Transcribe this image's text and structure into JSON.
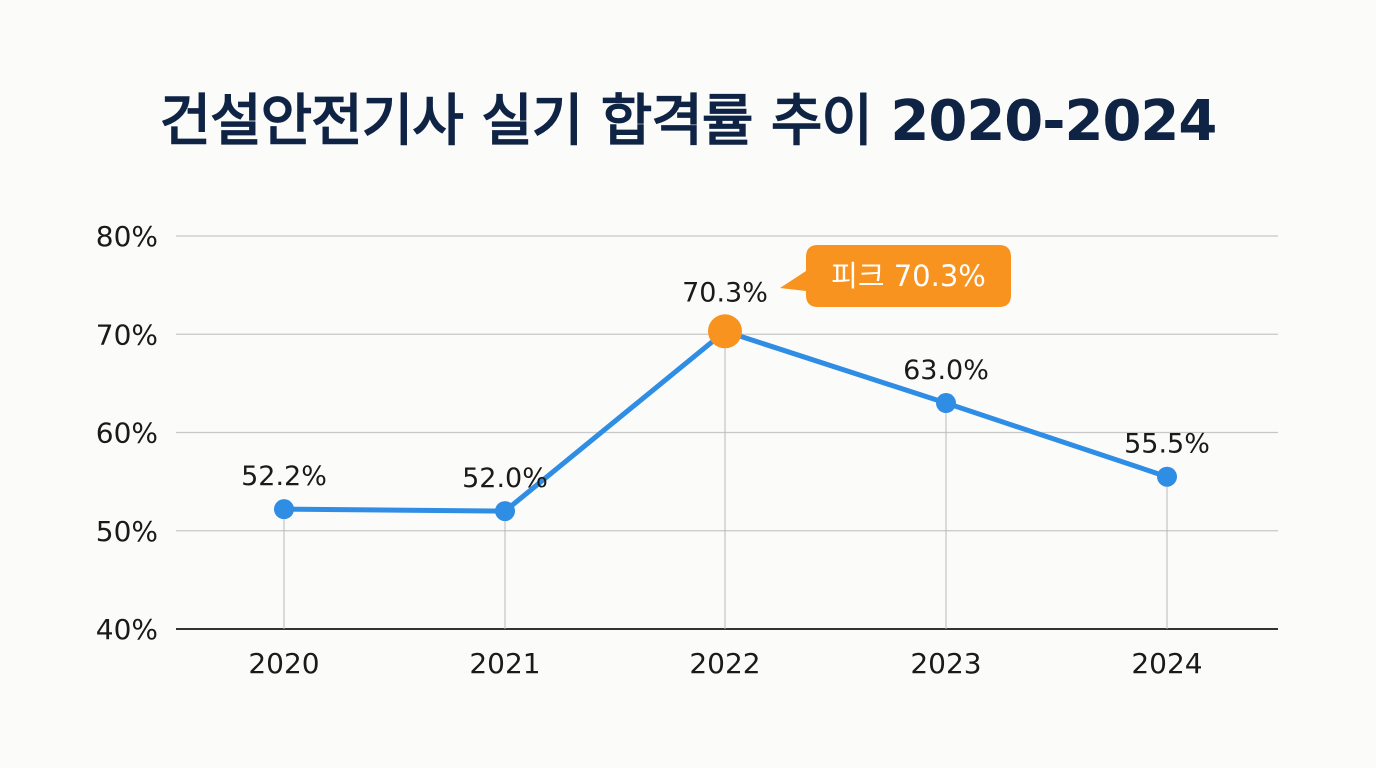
{
  "chart_data": {
    "type": "line",
    "title": "건설안전기사 실기 합격률 추이 2020-2024",
    "xlabel": "",
    "ylabel": "",
    "categories": [
      "2020",
      "2021",
      "2022",
      "2023",
      "2024"
    ],
    "series": [
      {
        "name": "합격률",
        "values": [
          52.2,
          52.0,
          70.3,
          63.0,
          55.5
        ],
        "labels": [
          "52.2%",
          "52.0%",
          "70.3%",
          "63.0%",
          "55.5%"
        ]
      }
    ],
    "ylim": [
      40,
      80
    ],
    "yticks": [
      40,
      50,
      60,
      70,
      80
    ],
    "ytick_labels": [
      "40%",
      "50%",
      "60%",
      "70%",
      "80%"
    ],
    "grid": true,
    "highlight": {
      "index": 2,
      "label": "피크 70.3%"
    },
    "colors": {
      "line": "#2f8de4",
      "highlight": "#f7931e",
      "grid": "#c8c8c8",
      "axis": "#333333",
      "title": "#0f2345"
    }
  }
}
